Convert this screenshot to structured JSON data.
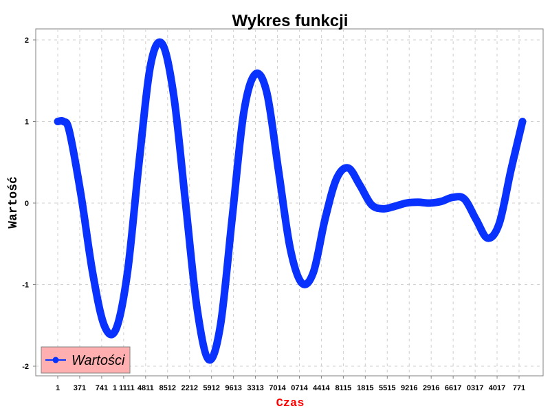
{
  "chart_data": {
    "type": "line",
    "title": "Wykres funkcji",
    "xlabel": "Czas",
    "ylabel": "Wartość",
    "xlabel_color": "#ff0000",
    "x_tick_labels": [
      "1",
      "371",
      "741",
      "1 1111",
      "4811",
      "8512",
      "2212",
      "5912",
      "9613",
      "3313",
      "7014",
      "0714",
      "4414",
      "8115",
      "1815",
      "5515",
      "9216",
      "2916",
      "6617",
      "0317",
      "4017",
      "771"
    ],
    "y_ticks": [
      2,
      1,
      0,
      -1,
      -2
    ],
    "y_tick_labels": [
      "2",
      "1",
      "0",
      "-1",
      "-2"
    ],
    "xlim": [
      0,
      20000
    ],
    "ylim": [
      -2.1,
      2.1
    ],
    "grid": true,
    "legend_position": "bottom-left",
    "legend_bg": "#ffafaf",
    "series": [
      {
        "name": "Wartości",
        "color": "#0a32ff",
        "x": [
          0,
          250,
          500,
          1000,
          1500,
          2000,
          2500,
          3000,
          3500,
          4000,
          4500,
          5000,
          5500,
          6000,
          6500,
          7000,
          7500,
          8000,
          8500,
          9000,
          9500,
          10000,
          10500,
          11000,
          11500,
          12000,
          12500,
          13000,
          13500,
          14000,
          14500,
          15000,
          15500,
          16000,
          16500,
          17000,
          17500,
          18000,
          18500,
          19000,
          19500,
          20000
        ],
        "y": [
          1.0,
          1.0,
          0.88,
          0.1,
          -0.85,
          -1.5,
          -1.55,
          -0.85,
          0.5,
          1.7,
          1.95,
          1.3,
          0.0,
          -1.3,
          -1.92,
          -1.5,
          -0.2,
          1.1,
          1.58,
          1.35,
          0.4,
          -0.55,
          -0.98,
          -0.85,
          -0.2,
          0.3,
          0.43,
          0.22,
          -0.02,
          -0.07,
          -0.04,
          0.0,
          0.01,
          0.0,
          0.02,
          0.07,
          0.05,
          -0.2,
          -0.43,
          -0.25,
          0.4,
          1.0
        ]
      }
    ]
  }
}
